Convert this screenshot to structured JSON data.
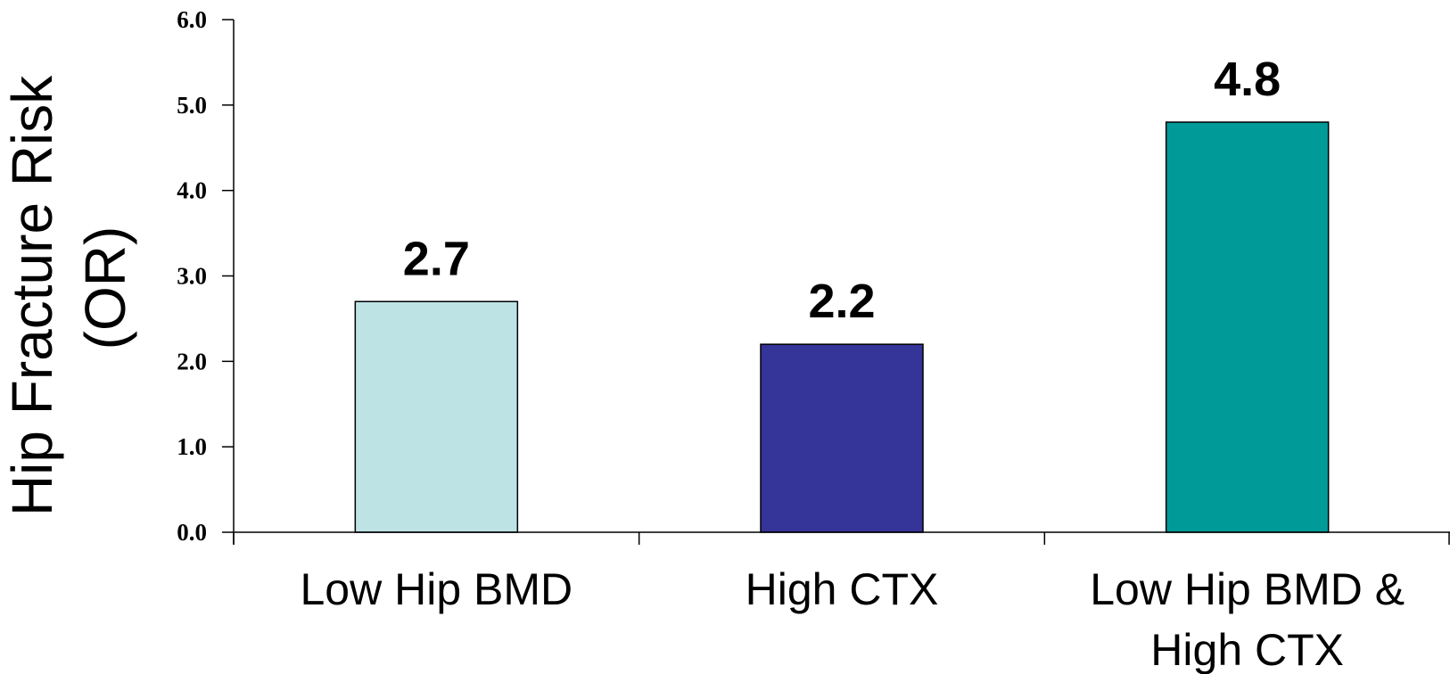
{
  "chart_data": {
    "type": "bar",
    "categories": [
      [
        "Low Hip BMD"
      ],
      [
        "High CTX"
      ],
      [
        "Low Hip BMD &",
        "High CTX"
      ]
    ],
    "values": [
      2.7,
      2.2,
      4.8
    ],
    "data_labels": [
      "2.7",
      "2.2",
      "4.8"
    ],
    "bar_colors": [
      "#bde3e5",
      "#353499",
      "#009b98"
    ],
    "ylabel": [
      "Hip Fracture Risk",
      "(OR)"
    ],
    "xlabel": "",
    "title": "",
    "ylim": [
      0,
      6
    ],
    "yticks": [
      "0.0",
      "1.0",
      "2.0",
      "3.0",
      "4.0",
      "5.0",
      "6.0"
    ],
    "grid": false,
    "legend": "none"
  }
}
